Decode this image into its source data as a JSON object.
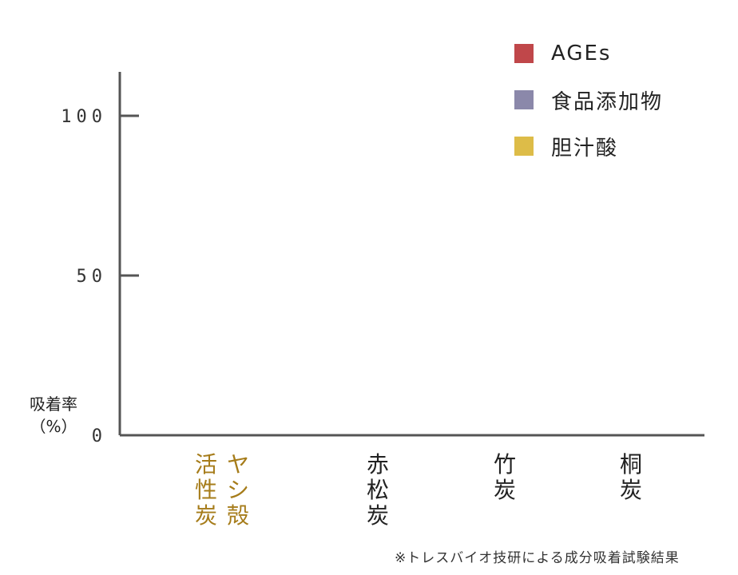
{
  "chart_data": {
    "type": "bar",
    "title": "",
    "ylabel_lines": [
      "吸着率",
      "（%）"
    ],
    "ylim": [
      0,
      100
    ],
    "yticks": [
      {
        "value": 100,
        "label": "100"
      },
      {
        "value": 50,
        "label": "50"
      },
      {
        "value": 0,
        "label": "0"
      }
    ],
    "categories": [
      {
        "columns": [
          "活性炭",
          "ヤシ殻"
        ],
        "color": "#a67c1a"
      },
      {
        "columns": [
          "赤松炭"
        ],
        "color": "#222222"
      },
      {
        "columns": [
          "竹炭"
        ],
        "color": "#222222"
      },
      {
        "columns": [
          "桐炭"
        ],
        "color": "#222222"
      }
    ],
    "series": [
      {
        "name": "AGEs",
        "color": "#c0474a",
        "values": [
          null,
          null,
          null,
          null
        ]
      },
      {
        "name": "食品添加物",
        "color": "#8b88aa",
        "values": [
          null,
          null,
          null,
          null
        ]
      },
      {
        "name": "胆汁酸",
        "color": "#ddbc48",
        "values": [
          null,
          null,
          null,
          null
        ]
      }
    ],
    "legend_position": "top-right",
    "grid": false,
    "footnote": "※トレスバイオ技研による成分吸着試験結果"
  }
}
